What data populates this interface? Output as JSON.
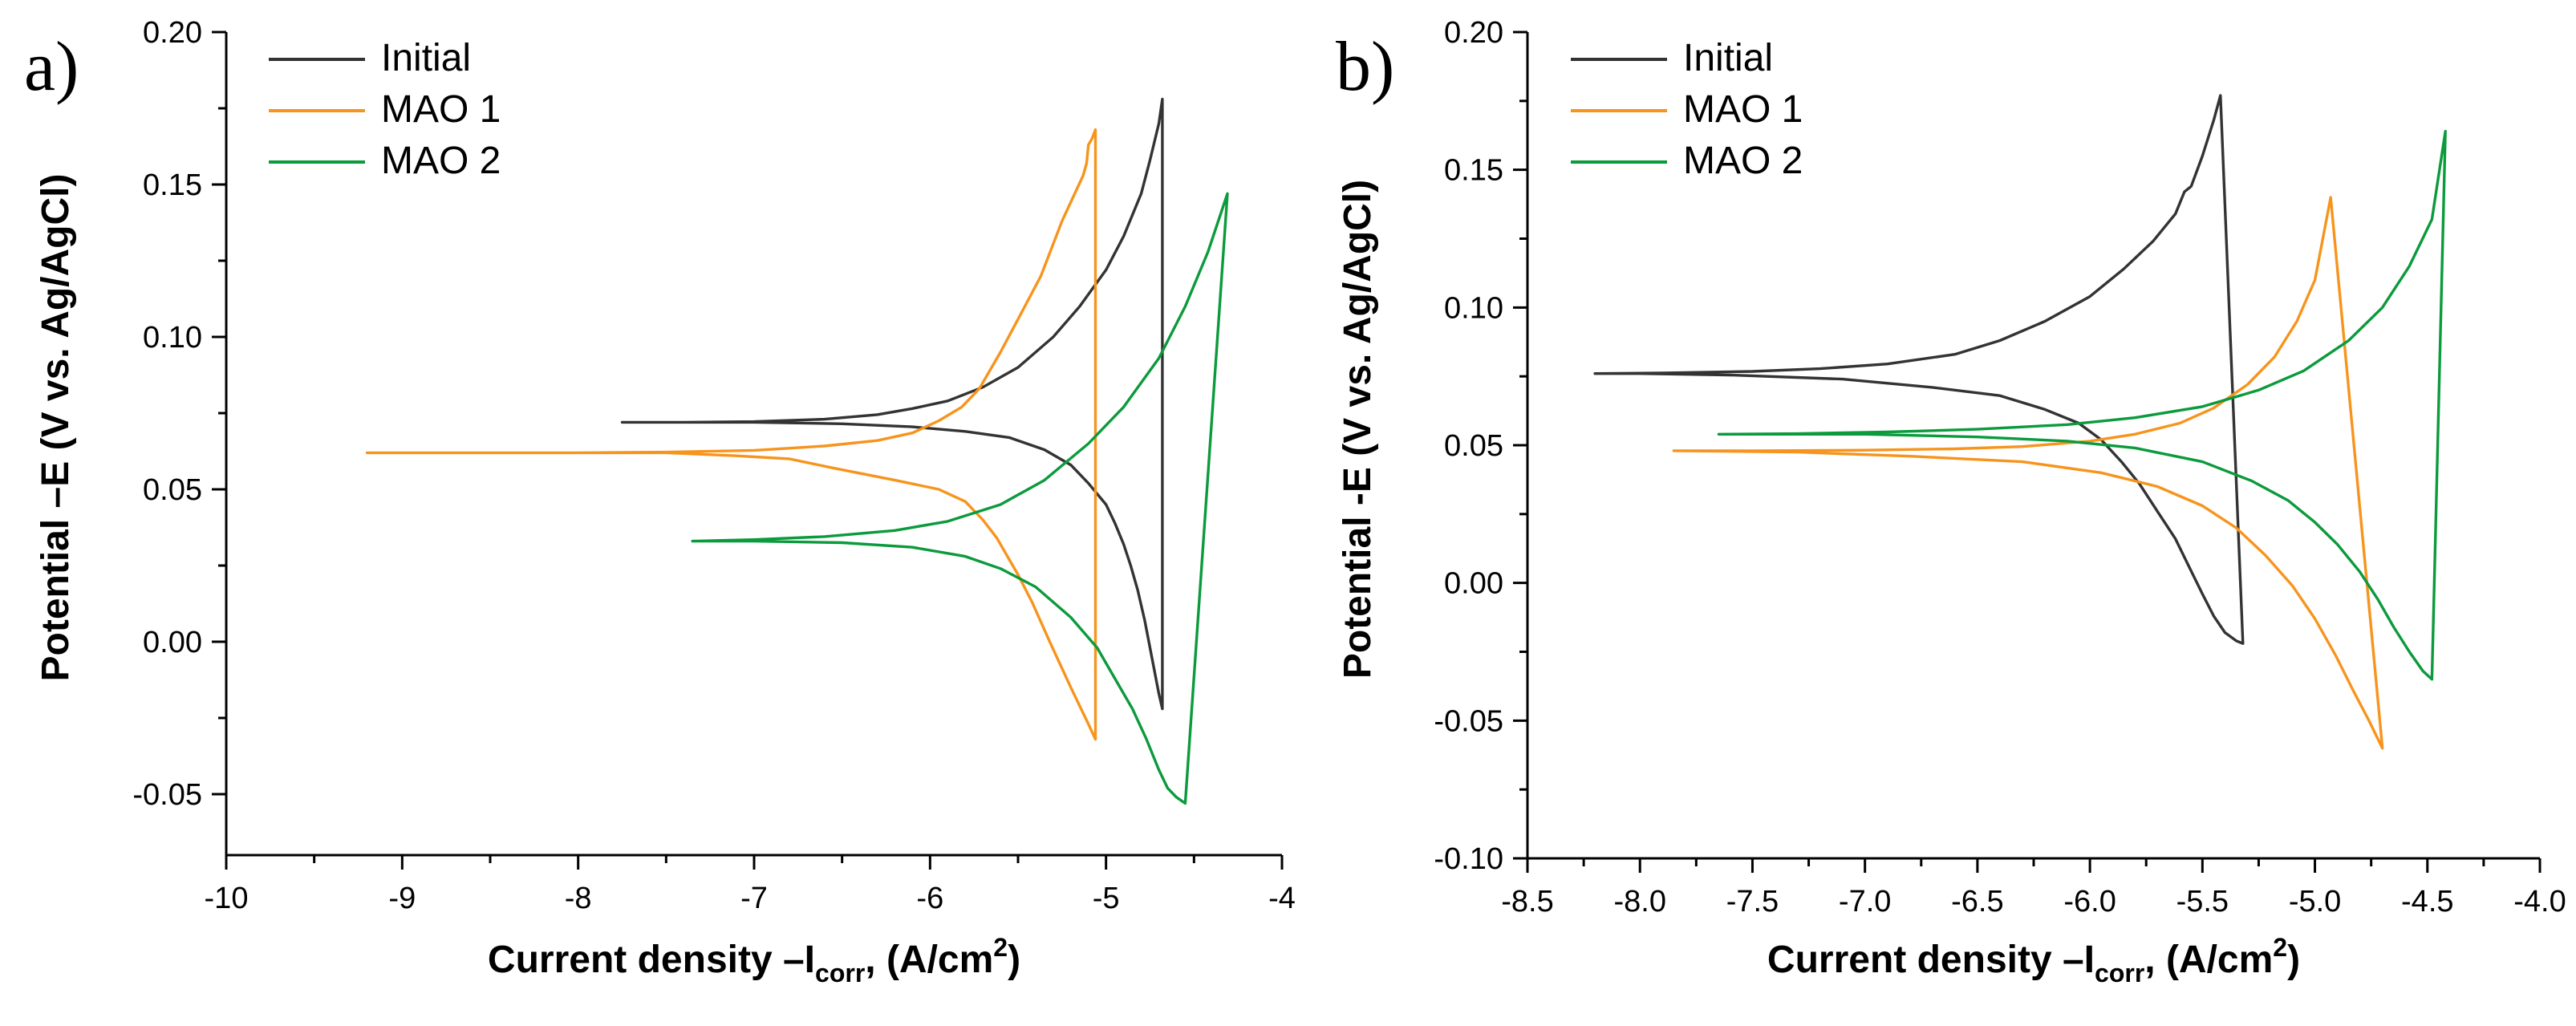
{
  "chart_data": [
    {
      "panel_label": "a)",
      "type": "line",
      "xlabel_main": "Current density –I",
      "xlabel_sub": "corr",
      "xlabel_tail": ", (A/cm",
      "xlabel_sup": "2",
      "xlabel_close": ")",
      "ylabel": "Potential –E (V vs. Ag/AgCl)",
      "xlim": [
        -10,
        -4
      ],
      "ylim": [
        -0.07,
        0.2
      ],
      "xticks": [
        -10,
        -9,
        -8,
        -7,
        -6,
        -5,
        -4
      ],
      "xtick_labels": [
        "-10",
        "-9",
        "-8",
        "-7",
        "-6",
        "-5",
        "-4"
      ],
      "yticks": [
        -0.05,
        0.0,
        0.05,
        0.1,
        0.15,
        0.2
      ],
      "ytick_labels": [
        "-0.05",
        "0.00",
        "0.05",
        "0.10",
        "0.15",
        "0.20"
      ],
      "legend_position": "top-left",
      "series": [
        {
          "name": "Initial",
          "color": "#333333",
          "x": [
            -7.75,
            -7.4,
            -7.0,
            -6.6,
            -6.3,
            -6.1,
            -5.9,
            -5.7,
            -5.5,
            -5.3,
            -5.15,
            -5.0,
            -4.9,
            -4.8,
            -4.75,
            -4.7,
            -4.68,
            -4.68,
            -4.7,
            -4.74,
            -4.78,
            -4.82,
            -4.86,
            -4.9,
            -4.95,
            -5.0,
            -5.1,
            -5.2,
            -5.35,
            -5.55,
            -5.8,
            -6.1,
            -6.5,
            -7.0,
            -7.5,
            -7.75
          ],
          "y": [
            0.072,
            0.072,
            0.0722,
            0.073,
            0.0745,
            0.0765,
            0.079,
            0.0835,
            0.09,
            0.1,
            0.11,
            0.122,
            0.133,
            0.147,
            0.158,
            0.17,
            0.178,
            -0.022,
            -0.017,
            -0.005,
            0.007,
            0.017,
            0.025,
            0.032,
            0.039,
            0.045,
            0.052,
            0.058,
            0.063,
            0.067,
            0.069,
            0.0705,
            0.0715,
            0.072,
            0.072,
            0.072
          ]
        },
        {
          "name": "MAO 1",
          "color": "#f7941d",
          "x": [
            -9.2,
            -8.5,
            -8.0,
            -7.5,
            -7.0,
            -6.6,
            -6.3,
            -6.1,
            -5.95,
            -5.82,
            -5.72,
            -5.6,
            -5.48,
            -5.37,
            -5.25,
            -5.17,
            -5.13,
            -5.11,
            -5.1,
            -5.08,
            -5.06,
            -5.06,
            -5.1,
            -5.2,
            -5.32,
            -5.42,
            -5.5,
            -5.56,
            -5.62,
            -5.7,
            -5.8,
            -5.95,
            -6.2,
            -6.55,
            -6.8,
            -7.1,
            -7.5,
            -8.0,
            -8.6,
            -9.2
          ],
          "y": [
            0.062,
            0.062,
            0.062,
            0.0622,
            0.0628,
            0.0642,
            0.066,
            0.0685,
            0.0725,
            0.077,
            0.083,
            0.095,
            0.108,
            0.12,
            0.138,
            0.148,
            0.153,
            0.157,
            0.163,
            0.165,
            0.168,
            -0.032,
            -0.027,
            -0.015,
            0.0,
            0.013,
            0.022,
            0.028,
            0.034,
            0.04,
            0.046,
            0.05,
            0.053,
            0.057,
            0.06,
            0.061,
            0.062,
            0.062,
            0.062,
            0.062
          ],
          "noise": true
        },
        {
          "name": "MAO 2",
          "color": "#0b9a3c",
          "x": [
            -7.35,
            -7.0,
            -6.6,
            -6.2,
            -5.9,
            -5.6,
            -5.35,
            -5.1,
            -4.9,
            -4.7,
            -4.55,
            -4.42,
            -4.31,
            -4.55,
            -4.6,
            -4.65,
            -4.7,
            -4.77,
            -4.85,
            -4.95,
            -5.05,
            -5.2,
            -5.4,
            -5.6,
            -5.8,
            -6.1,
            -6.5,
            -7.0,
            -7.35
          ],
          "y": [
            0.033,
            0.0335,
            0.0345,
            0.0365,
            0.0395,
            0.045,
            0.053,
            0.065,
            0.077,
            0.093,
            0.11,
            0.128,
            0.147,
            -0.053,
            -0.051,
            -0.048,
            -0.042,
            -0.032,
            -0.022,
            -0.012,
            -0.002,
            0.008,
            0.018,
            0.024,
            0.028,
            0.031,
            0.0325,
            0.033,
            0.033
          ]
        }
      ]
    },
    {
      "panel_label": "b)",
      "type": "line",
      "xlabel_main": "Current density –I",
      "xlabel_sub": "corr",
      "xlabel_tail": ", (A/cm",
      "xlabel_sup": "2",
      "xlabel_close": ")",
      "ylabel": "Potential -E (V vs. Ag/AgCl)",
      "xlim": [
        -8.5,
        -4.0
      ],
      "ylim": [
        -0.1,
        0.2
      ],
      "xticks": [
        -8.5,
        -8.0,
        -7.5,
        -7.0,
        -6.5,
        -6.0,
        -5.5,
        -5.0,
        -4.5,
        -4.0
      ],
      "xtick_labels": [
        "-8.5",
        "-8.0",
        "-7.5",
        "-7.0",
        "-6.5",
        "-6.0",
        "-5.5",
        "-5.0",
        "-4.5",
        "-4.0"
      ],
      "yticks": [
        -0.1,
        -0.05,
        0.0,
        0.05,
        0.1,
        0.15,
        0.2
      ],
      "ytick_labels": [
        "-0.10",
        "-0.05",
        "0.00",
        "0.05",
        "0.10",
        "0.15",
        "0.20"
      ],
      "legend_position": "top-left",
      "series": [
        {
          "name": "Initial",
          "color": "#333333",
          "x": [
            -8.2,
            -7.9,
            -7.5,
            -7.2,
            -6.9,
            -6.6,
            -6.4,
            -6.2,
            -6.0,
            -5.85,
            -5.72,
            -5.62,
            -5.58,
            -5.55,
            -5.5,
            -5.45,
            -5.42,
            -5.32,
            -5.35,
            -5.4,
            -5.45,
            -5.5,
            -5.56,
            -5.62,
            -5.7,
            -5.78,
            -5.86,
            -5.95,
            -6.05,
            -6.2,
            -6.4,
            -6.7,
            -7.1,
            -7.6,
            -8.0,
            -8.2
          ],
          "y": [
            0.076,
            0.0762,
            0.0768,
            0.0778,
            0.0795,
            0.083,
            0.088,
            0.095,
            0.104,
            0.114,
            0.124,
            0.134,
            0.142,
            0.144,
            0.155,
            0.168,
            0.177,
            -0.022,
            -0.021,
            -0.018,
            -0.012,
            -0.004,
            0.006,
            0.016,
            0.026,
            0.036,
            0.044,
            0.052,
            0.058,
            0.063,
            0.068,
            0.071,
            0.074,
            0.0755,
            0.076,
            0.076
          ]
        },
        {
          "name": "MAO 1",
          "color": "#f7941d",
          "x": [
            -7.85,
            -7.5,
            -7.0,
            -6.6,
            -6.3,
            -6.0,
            -5.8,
            -5.6,
            -5.45,
            -5.3,
            -5.18,
            -5.08,
            -5.0,
            -4.93,
            -4.7,
            -4.76,
            -4.83,
            -4.91,
            -5.0,
            -5.1,
            -5.22,
            -5.35,
            -5.5,
            -5.7,
            -5.95,
            -6.3,
            -6.8,
            -7.3,
            -7.85
          ],
          "y": [
            0.048,
            0.048,
            0.0482,
            0.0487,
            0.0495,
            0.0515,
            0.054,
            0.058,
            0.0635,
            0.072,
            0.082,
            0.095,
            0.11,
            0.14,
            -0.06,
            -0.05,
            -0.039,
            -0.026,
            -0.013,
            -0.001,
            0.01,
            0.02,
            0.028,
            0.035,
            0.04,
            0.044,
            0.046,
            0.0475,
            0.048
          ]
        },
        {
          "name": "MAO 2",
          "color": "#0b9a3c",
          "x": [
            -7.65,
            -7.3,
            -6.9,
            -6.5,
            -6.1,
            -5.8,
            -5.5,
            -5.25,
            -5.05,
            -4.85,
            -4.7,
            -4.58,
            -4.48,
            -4.42,
            -4.48,
            -4.52,
            -4.58,
            -4.65,
            -4.72,
            -4.8,
            -4.9,
            -5.0,
            -5.12,
            -5.28,
            -5.5,
            -5.8,
            -6.1,
            -6.5,
            -7.0,
            -7.65
          ],
          "y": [
            0.054,
            0.0542,
            0.0548,
            0.0558,
            0.0575,
            0.06,
            0.064,
            0.07,
            0.077,
            0.088,
            0.1,
            0.115,
            0.132,
            0.164,
            -0.035,
            -0.032,
            -0.025,
            -0.016,
            -0.006,
            0.004,
            0.014,
            0.022,
            0.03,
            0.037,
            0.044,
            0.049,
            0.0515,
            0.053,
            0.054,
            0.054
          ]
        }
      ]
    }
  ]
}
